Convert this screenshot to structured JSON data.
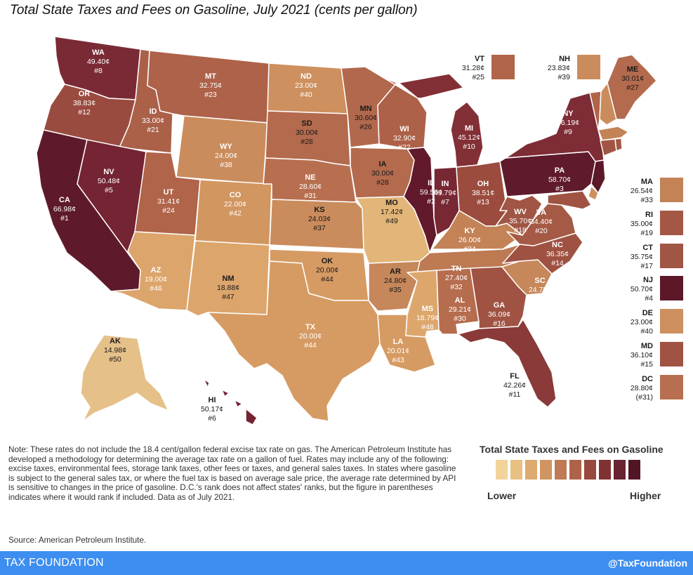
{
  "title": "Total State Taxes and Fees on Gasoline, July 2021 (cents per gallon)",
  "legend": {
    "title": "Total State Taxes and Fees on Gasoline",
    "lower": "Lower",
    "higher": "Higher",
    "colors": [
      "#f2d39a",
      "#e8c082",
      "#ddaa70",
      "#cf9462",
      "#c07a55",
      "#ae6249",
      "#98493d",
      "#803232",
      "#692431",
      "#521526"
    ]
  },
  "states": [
    {
      "abbr": "WA",
      "value": "49.40¢",
      "rank": "#8",
      "color": "#7a2a35",
      "text": "light"
    },
    {
      "abbr": "OR",
      "value": "38.83¢",
      "rank": "#12",
      "color": "#9a4b3f",
      "text": "light"
    },
    {
      "abbr": "CA",
      "value": "66.98¢",
      "rank": "#1",
      "color": "#5e1a2a",
      "text": "light"
    },
    {
      "abbr": "ID",
      "value": "33.00¢",
      "rank": "#21",
      "color": "#ab6048",
      "text": "light"
    },
    {
      "abbr": "NV",
      "value": "50.48¢",
      "rank": "#5",
      "color": "#742433",
      "text": "light"
    },
    {
      "abbr": "MT",
      "value": "32.75¢",
      "rank": "#23",
      "color": "#ae6249",
      "text": "light"
    },
    {
      "abbr": "WY",
      "value": "24.00¢",
      "rank": "#38",
      "color": "#ca8c5c",
      "text": "light"
    },
    {
      "abbr": "UT",
      "value": "31.41¢",
      "rank": "#24",
      "color": "#b06449",
      "text": "light"
    },
    {
      "abbr": "AZ",
      "value": "19.00¢",
      "rank": "#46",
      "color": "#dca56b",
      "text": "light"
    },
    {
      "abbr": "CO",
      "value": "22.00¢",
      "rank": "#42",
      "color": "#d29660",
      "text": "light"
    },
    {
      "abbr": "NM",
      "value": "18.88¢",
      "rank": "#47",
      "color": "#dca56b",
      "text": "dark"
    },
    {
      "abbr": "ND",
      "value": "23.00¢",
      "rank": "#40",
      "color": "#cd905e",
      "text": "light"
    },
    {
      "abbr": "SD",
      "value": "30.00¢",
      "rank": "#28",
      "color": "#b36a4d",
      "text": "dark"
    },
    {
      "abbr": "NE",
      "value": "28.60¢",
      "rank": "#31",
      "color": "#b86f4f",
      "text": "light"
    },
    {
      "abbr": "KS",
      "value": "24.03¢",
      "rank": "#37",
      "color": "#ca8c5c",
      "text": "dark"
    },
    {
      "abbr": "OK",
      "value": "20.00¢",
      "rank": "#44",
      "color": "#d69b63",
      "text": "dark"
    },
    {
      "abbr": "TX",
      "value": "20.00¢",
      "rank": "#44",
      "color": "#d69b63",
      "text": "light"
    },
    {
      "abbr": "MN",
      "value": "30.60¢",
      "rank": "#26",
      "color": "#b2684c",
      "text": "dark"
    },
    {
      "abbr": "IA",
      "value": "30.00¢",
      "rank": "#28",
      "color": "#b36a4d",
      "text": "dark"
    },
    {
      "abbr": "MO",
      "value": "17.42¢",
      "rank": "#49",
      "color": "#e2b578",
      "text": "dark"
    },
    {
      "abbr": "AR",
      "value": "24.80¢",
      "rank": "#35",
      "color": "#c6875a",
      "text": "dark"
    },
    {
      "abbr": "LA",
      "value": "20.01¢",
      "rank": "#43",
      "color": "#d69b63",
      "text": "light"
    },
    {
      "abbr": "WI",
      "value": "32.90¢",
      "rank": "#22",
      "color": "#ad6148",
      "text": "light"
    },
    {
      "abbr": "IL",
      "value": "59.56¢",
      "rank": "#2",
      "color": "#62192b",
      "text": "light"
    },
    {
      "abbr": "MI",
      "value": "45.12¢",
      "rank": "#10",
      "color": "#822f36",
      "text": "light"
    },
    {
      "abbr": "IN",
      "value": "49.79¢",
      "rank": "#7",
      "color": "#772833",
      "text": "light"
    },
    {
      "abbr": "OH",
      "value": "38.51¢",
      "rank": "#13",
      "color": "#9b4c3f",
      "text": "light"
    },
    {
      "abbr": "KY",
      "value": "26.00¢",
      "rank": "#34",
      "color": "#c38356",
      "text": "light"
    },
    {
      "abbr": "TN",
      "value": "27.40¢",
      "rank": "#32",
      "color": "#bd7a53",
      "text": "light"
    },
    {
      "abbr": "MS",
      "value": "18.79¢",
      "rank": "#48",
      "color": "#dda76c",
      "text": "light"
    },
    {
      "abbr": "AL",
      "value": "29.21¢",
      "rank": "#30",
      "color": "#b66d4e",
      "text": "light"
    },
    {
      "abbr": "GA",
      "value": "36.09¢",
      "rank": "#16",
      "color": "#a05343",
      "text": "light"
    },
    {
      "abbr": "FL",
      "value": "42.26¢",
      "rank": "#11",
      "color": "#8a3a39",
      "text": "dark"
    },
    {
      "abbr": "SC",
      "value": "24.75¢",
      "rank": "#36",
      "color": "#c6875a",
      "text": "light"
    },
    {
      "abbr": "NC",
      "value": "36.35¢",
      "rank": "#14",
      "color": "#9f5242",
      "text": "light"
    },
    {
      "abbr": "VA",
      "value": "34.40¢",
      "rank": "#20",
      "color": "#a55a45",
      "text": "light"
    },
    {
      "abbr": "WV",
      "value": "35.70¢",
      "rank": "#18",
      "color": "#a15544",
      "text": "light"
    },
    {
      "abbr": "PA",
      "value": "58.70¢",
      "rank": "#3",
      "color": "#5f1a2b",
      "text": "light"
    },
    {
      "abbr": "NY",
      "value": "46.19¢",
      "rank": "#9",
      "color": "#7e2c35",
      "text": "light"
    },
    {
      "abbr": "ME",
      "value": "30.01¢",
      "rank": "#27",
      "color": "#b36a4d",
      "text": "dark"
    },
    {
      "abbr": "AK",
      "value": "14.98¢",
      "rank": "#50",
      "color": "#e5c088",
      "text": "dark"
    },
    {
      "abbr": "HI",
      "value": "50.17¢",
      "rank": "#6",
      "color": "#742433",
      "text": "dark"
    }
  ],
  "small_states": [
    {
      "abbr": "VT",
      "value": "31.28¢",
      "rank": "#25",
      "color": "#b06449"
    },
    {
      "abbr": "NH",
      "value": "23.83¢",
      "rank": "#39",
      "color": "#ca8c5c"
    },
    {
      "abbr": "MA",
      "value": "26.54¢",
      "rank": "#33",
      "color": "#c38356"
    },
    {
      "abbr": "RI",
      "value": "35.00¢",
      "rank": "#19",
      "color": "#a35744"
    },
    {
      "abbr": "CT",
      "value": "35.75¢",
      "rank": "#17",
      "color": "#a15544"
    },
    {
      "abbr": "NJ",
      "value": "50.70¢",
      "rank": "#4",
      "color": "#5c1729"
    },
    {
      "abbr": "DE",
      "value": "23.00¢",
      "rank": "#40",
      "color": "#cd905e"
    },
    {
      "abbr": "MD",
      "value": "36.10¢",
      "rank": "#15",
      "color": "#a05343"
    },
    {
      "abbr": "DC",
      "value": "28.80¢",
      "rank": "(#31)",
      "color": "#b86f4f"
    }
  ],
  "note": "Note: These rates do not include the 18.4 cent/gallon federal excise tax rate on gas. The American Petroleum Institute has developed a methodology for determining the average tax rate on a gallon of fuel. Rates may include any of the following: excise taxes, environmental fees, storage tank taxes, other fees or taxes, and general sales taxes. In states where gasoline is subject to the general sales tax, or where the fuel tax is based on average sale price, the average rate determined by API is sensitive to changes in the price of gasoline. D.C.'s rank does not affect states' ranks, but the figure in parentheses indicates where it would rank if included. Data as of July 2021.",
  "source": "Source: American Petroleum Institute.",
  "footer": {
    "brand": "TAX FOUNDATION",
    "handle": "@TaxFoundation",
    "color": "#3d8ef0"
  }
}
